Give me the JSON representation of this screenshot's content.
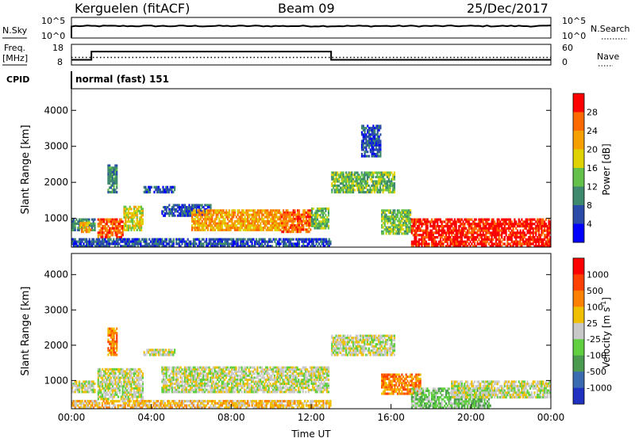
{
  "header": {
    "station": "Kerguelen (fitACF)",
    "beam": "Beam 09",
    "date": "25/Dec/2017"
  },
  "nsky_panel": {
    "left_label": "N.Sky",
    "right_label": "N.Search",
    "left_ticks": [
      "10^5",
      "10^0"
    ],
    "right_ticks": [
      "10^5",
      "10^0"
    ],
    "nsky_level": 0.4,
    "nsearch_level": 0.55
  },
  "freq_panel": {
    "label_line1": "Freq.",
    "label_line2": "[MHz]",
    "left_ticks": [
      "18",
      "8"
    ],
    "right_label": "Nave",
    "right_ticks": [
      "60",
      "0"
    ],
    "freq_steps": [
      {
        "from": 0,
        "to": 1.0,
        "mhz": 10.5
      },
      {
        "from": 1.0,
        "to": 13.0,
        "mhz": 14.5
      },
      {
        "from": 13.0,
        "to": 24.0,
        "mhz": 10.5
      }
    ],
    "nave_level": 22
  },
  "cpid": {
    "label": "CPID",
    "mode_text": "normal (fast) 151"
  },
  "chart_data": [
    {
      "type": "heatmap",
      "name": "power",
      "ylabel": "Slant Range [km]",
      "yticks": [
        1000,
        2000,
        3000,
        4000
      ],
      "ylim": [
        200,
        4600
      ],
      "xlim": [
        0,
        24
      ],
      "colorbar": {
        "label": "Power [dB]",
        "ticks": [
          "4",
          "8",
          "12",
          "16",
          "20",
          "24",
          "28"
        ],
        "colors": [
          "#0000ff",
          "#2a4ca8",
          "#3f8a6e",
          "#64c24a",
          "#e0d200",
          "#f5a000",
          "#ff6a00",
          "#ff0000"
        ]
      },
      "regions": [
        {
          "t0": 0.0,
          "t1": 1.2,
          "r0": 650,
          "r1": 1000,
          "level": 2
        },
        {
          "t0": 0.4,
          "t1": 1.0,
          "r0": 600,
          "r1": 900,
          "level": 5
        },
        {
          "t0": 1.3,
          "t1": 2.6,
          "r0": 450,
          "r1": 1000,
          "level": 6
        },
        {
          "t0": 2.6,
          "t1": 3.6,
          "r0": 650,
          "r1": 1350,
          "level": 4
        },
        {
          "t0": 1.8,
          "t1": 2.3,
          "r0": 1700,
          "r1": 2500,
          "level": 2
        },
        {
          "t0": 3.6,
          "t1": 5.2,
          "r0": 1700,
          "r1": 1900,
          "level": 1
        },
        {
          "t0": 4.5,
          "t1": 7.0,
          "r0": 1050,
          "r1": 1400,
          "level": 1
        },
        {
          "t0": 6.0,
          "t1": 10.5,
          "r0": 650,
          "r1": 1250,
          "level": 5
        },
        {
          "t0": 10.5,
          "t1": 12.0,
          "r0": 600,
          "r1": 1250,
          "level": 6
        },
        {
          "t0": 12.0,
          "t1": 12.9,
          "r0": 700,
          "r1": 1300,
          "level": 3
        },
        {
          "t0": 13.0,
          "t1": 16.2,
          "r0": 1700,
          "r1": 2300,
          "level": 3
        },
        {
          "t0": 14.5,
          "t1": 15.5,
          "r0": 2700,
          "r1": 3600,
          "level": 1
        },
        {
          "t0": 15.5,
          "t1": 17.0,
          "r0": 550,
          "r1": 1250,
          "level": 3
        },
        {
          "t0": 17.0,
          "t1": 24.0,
          "r0": 200,
          "r1": 1000,
          "level": 7
        },
        {
          "t0": 0.0,
          "t1": 13.0,
          "r0": 200,
          "r1": 450,
          "level": 1
        }
      ]
    },
    {
      "type": "heatmap",
      "name": "velocity",
      "ylabel": "Slant Range [km]",
      "yticks": [
        1000,
        2000,
        3000,
        4000
      ],
      "ylim": [
        200,
        4600
      ],
      "xlim": [
        0,
        24
      ],
      "xticks": [
        "00:00",
        "04:00",
        "08:00",
        "12:00",
        "16:00",
        "20:00",
        "00:00"
      ],
      "xlabel": "Time UT",
      "colorbar": {
        "label": "Velocity [m s",
        "label_sup": "-1",
        "ticks": [
          "1000",
          "500",
          "100",
          "25",
          "-25",
          "-100",
          "-500",
          "-1000"
        ],
        "colors": [
          "#2030c0",
          "#3a6ab0",
          "#4a9a50",
          "#60d040",
          "#c8c8c8",
          "#f0c000",
          "#ff8000",
          "#ff4000",
          "#ff0000"
        ]
      },
      "regions": [
        {
          "t0": 0.0,
          "t1": 1.2,
          "r0": 650,
          "r1": 1000,
          "level": 4
        },
        {
          "t0": 1.3,
          "t1": 3.6,
          "r0": 450,
          "r1": 1350,
          "level": 4
        },
        {
          "t0": 1.8,
          "t1": 2.3,
          "r0": 1700,
          "r1": 2500,
          "level": 6
        },
        {
          "t0": 3.6,
          "t1": 5.2,
          "r0": 1700,
          "r1": 1900,
          "level": 4
        },
        {
          "t0": 4.5,
          "t1": 12.9,
          "r0": 650,
          "r1": 1400,
          "level": 4
        },
        {
          "t0": 13.0,
          "t1": 16.2,
          "r0": 1700,
          "r1": 2300,
          "level": 4
        },
        {
          "t0": 15.5,
          "t1": 17.5,
          "r0": 600,
          "r1": 1200,
          "level": 6
        },
        {
          "t0": 17.0,
          "t1": 21.0,
          "r0": 200,
          "r1": 800,
          "level": 3
        },
        {
          "t0": 19.0,
          "t1": 24.0,
          "r0": 500,
          "r1": 1000,
          "level": 4
        },
        {
          "t0": 0.0,
          "t1": 13.0,
          "r0": 200,
          "r1": 450,
          "level": 5
        }
      ]
    }
  ]
}
